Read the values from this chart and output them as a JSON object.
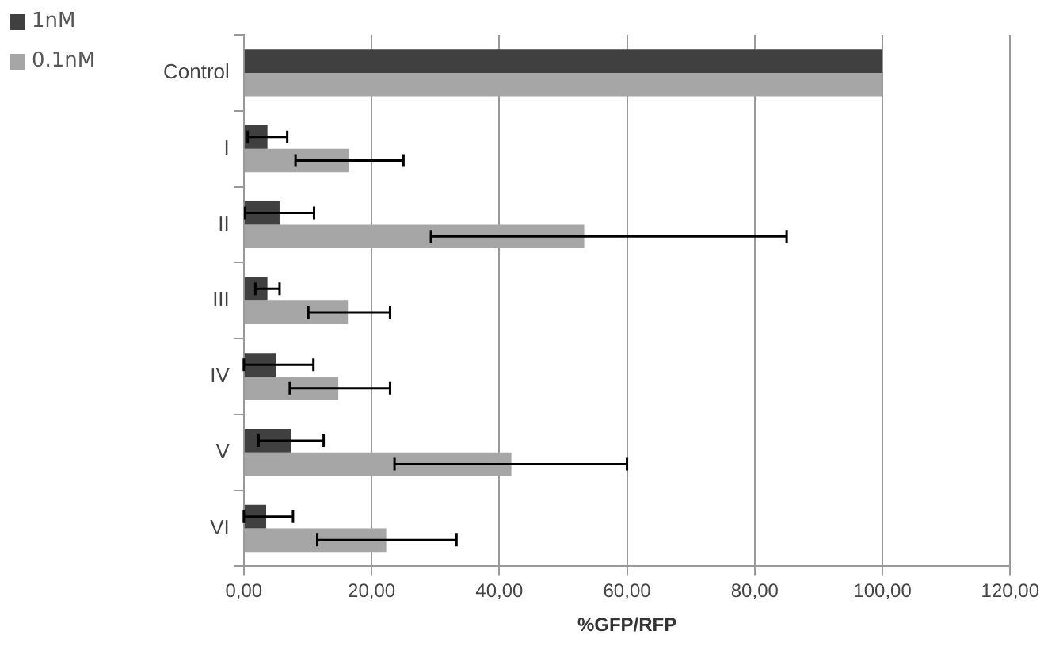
{
  "chart_data": {
    "type": "bar",
    "orientation": "horizontal",
    "xlabel": "%GFP/RFP",
    "categories": [
      "Control",
      "I",
      "II",
      "III",
      "IV",
      "V",
      "VI"
    ],
    "series": [
      {
        "name": "1nM",
        "color": "#404040",
        "values": [
          100,
          3.7,
          5.6,
          3.7,
          5.0,
          7.4,
          3.5
        ],
        "errors": [
          null,
          3.1,
          5.4,
          1.9,
          [
            0,
            10.9
          ],
          [
            2.3,
            12.5
          ],
          [
            0,
            7.7
          ]
        ]
      },
      {
        "name": "0.1nM",
        "color": "#a6a6a6",
        "values": [
          100,
          16.5,
          53.3,
          16.3,
          14.8,
          41.9,
          22.3
        ],
        "errors": [
          null,
          [
            8.1,
            25
          ],
          [
            29.3,
            85
          ],
          [
            10.1,
            22.9
          ],
          [
            7.2,
            22.9
          ],
          [
            23.6,
            60
          ],
          [
            11.5,
            33.3
          ]
        ]
      }
    ],
    "xlim": [
      0,
      120
    ],
    "xticks": [
      {
        "value": 0,
        "label": "0,00"
      },
      {
        "value": 20,
        "label": "20,00"
      },
      {
        "value": 40,
        "label": "40,00"
      },
      {
        "value": 60,
        "label": "60,00"
      },
      {
        "value": 80,
        "label": "80,00"
      },
      {
        "value": 100,
        "label": "100,00"
      },
      {
        "value": 120,
        "label": "120,00"
      }
    ],
    "grid": "x",
    "legend": "top left"
  }
}
